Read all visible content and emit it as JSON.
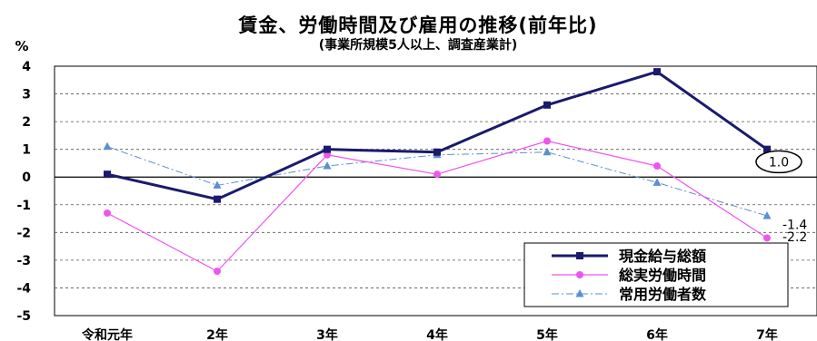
{
  "chart_data": {
    "type": "line",
    "title": "賃金、労働時間及び雇用の推移(前年比)",
    "subtitle": "(事業所規模5人以上、調査産業計)",
    "ylabel": "%",
    "xlabel": "",
    "ylim": [
      -5,
      4
    ],
    "yticks": [
      4,
      3,
      2,
      1,
      0,
      -1,
      -2,
      -3,
      -4,
      -5
    ],
    "grid": true,
    "legend_position": "bottom-right",
    "categories": [
      "令和元年",
      "2年",
      "3年",
      "4年",
      "5年",
      "6年",
      "7年"
    ],
    "series": [
      {
        "name": "現金給与総額",
        "color": "#1a1a6e",
        "marker": "square",
        "style": "solid-thick",
        "values": [
          0.1,
          -0.8,
          1.0,
          0.9,
          2.6,
          3.8,
          1.0
        ]
      },
      {
        "name": "総実労働時間",
        "color": "#ee55ee",
        "marker": "circle",
        "style": "solid-thin",
        "values": [
          -1.3,
          -3.4,
          0.8,
          0.1,
          1.3,
          0.4,
          -2.2
        ]
      },
      {
        "name": "常用労働者数",
        "color": "#5a8fd0",
        "marker": "triangle",
        "style": "dashdot",
        "values": [
          1.1,
          -0.3,
          0.4,
          0.8,
          0.9,
          -0.2,
          -1.4
        ]
      }
    ],
    "annotations": [
      {
        "series": "現金給与総額",
        "category": "7年",
        "text": "1.0",
        "circled": true
      },
      {
        "series": "常用労働者数",
        "category": "7年",
        "text": "-1.4"
      },
      {
        "series": "総実労働時間",
        "category": "7年",
        "text": "-2.2"
      }
    ]
  }
}
